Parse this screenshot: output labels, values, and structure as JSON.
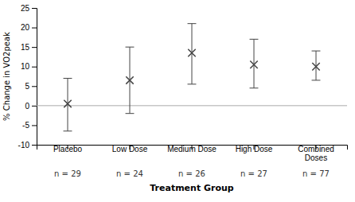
{
  "chart_data": {
    "type": "errorbar",
    "categories": [
      "Placebo",
      "Low Dose",
      "Medium Dose",
      "High Dose",
      "Combined\nDoses"
    ],
    "annotations": [
      "n = 29",
      "n = 24",
      "n = 26",
      "n = 27",
      "n = 77"
    ],
    "values": [
      0.5,
      6.5,
      13.5,
      10.5,
      10.0
    ],
    "ci_low": [
      -6.5,
      -2.0,
      5.5,
      4.5,
      6.5
    ],
    "ci_high": [
      7.0,
      15.0,
      21.0,
      17.0,
      14.0
    ],
    "reference_line": 0,
    "y_label": "% Change in VO2peak",
    "x_label": "Treatment Group",
    "ylim": [
      -10,
      25
    ],
    "yticks": [
      -10,
      -5,
      0,
      5,
      10,
      15,
      20,
      25
    ],
    "color": "#444444",
    "marker": "x",
    "grid": false
  }
}
